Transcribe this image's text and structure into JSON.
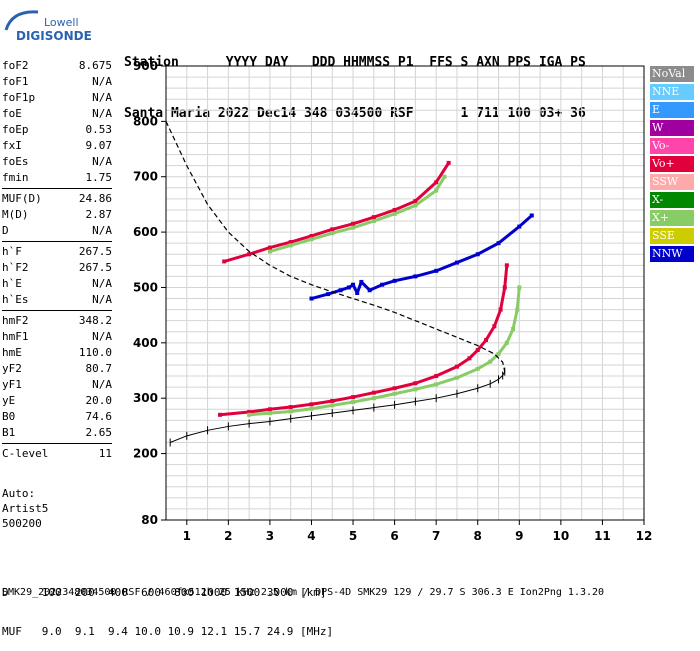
{
  "logo": {
    "line1": "Lowell",
    "line2": "DIGISONDE"
  },
  "header": {
    "line1": "Station      YYYY DAY   DDD HHMMSS P1  FFS S AXN PPS IGA PS",
    "line2": "Santa Maria 2022 Dec14 348 034500 RSF      1 711 100 03+ 36"
  },
  "params": [
    {
      "group": [
        {
          "label": "foF2",
          "value": "8.675"
        },
        {
          "label": "foF1",
          "value": "N/A"
        },
        {
          "label": "foF1p",
          "value": "N/A"
        },
        {
          "label": "foE",
          "value": "N/A"
        },
        {
          "label": "foEp",
          "value": "0.53"
        },
        {
          "label": "fxI",
          "value": "9.07"
        },
        {
          "label": "foEs",
          "value": "N/A"
        },
        {
          "label": "fmin",
          "value": "1.75"
        }
      ]
    },
    {
      "group": [
        {
          "label": "MUF(D)",
          "value": "24.86"
        },
        {
          "label": "M(D)",
          "value": "2.87"
        },
        {
          "label": "D",
          "value": "N/A"
        }
      ]
    },
    {
      "group": [
        {
          "label": "h`F",
          "value": "267.5"
        },
        {
          "label": "h`F2",
          "value": "267.5"
        },
        {
          "label": "h`E",
          "value": "N/A"
        },
        {
          "label": "h`Es",
          "value": "N/A"
        }
      ]
    },
    {
      "group": [
        {
          "label": "hmF2",
          "value": "348.2"
        },
        {
          "label": "hmF1",
          "value": "N/A"
        },
        {
          "label": "hmE",
          "value": "110.0"
        },
        {
          "label": "yF2",
          "value": "80.7"
        },
        {
          "label": "yF1",
          "value": "N/A"
        },
        {
          "label": "yE",
          "value": "20.0"
        },
        {
          "label": "B0",
          "value": "74.6"
        },
        {
          "label": "B1",
          "value": "2.65"
        }
      ]
    },
    {
      "group": [
        {
          "label": "C-level",
          "value": "11"
        }
      ]
    }
  ],
  "auto": {
    "line1": "Auto:",
    "line2": "Artist5",
    "line3": "500200"
  },
  "legend": [
    {
      "label": "NoVal",
      "color": "#8c8c8c"
    },
    {
      "label": "NNE",
      "color": "#66ccff"
    },
    {
      "label": "E",
      "color": "#3399ff"
    },
    {
      "label": "W",
      "color": "#a000a0"
    },
    {
      "label": "Vo-",
      "color": "#ff44aa"
    },
    {
      "label": "Vo+",
      "color": "#e0003c"
    },
    {
      "label": "SSW",
      "color": "#ffaaaa"
    },
    {
      "label": "X-",
      "color": "#008800"
    },
    {
      "label": "X+",
      "color": "#88cc66"
    },
    {
      "label": "SSE",
      "color": "#cccc00"
    },
    {
      "label": "NNW",
      "color": "#0000cc"
    }
  ],
  "bottom": {
    "d_row": "D     100  200  400  600  800 1000 1500 3000 [km]",
    "muf_row": "MUF   9.0  9.1  9.4 10.0 10.9 12.1 15.7 24.9 [MHz]"
  },
  "footer": "SMK29_2022348034500.RSF / 460fx512h 25 kHz 2.5 km / DPS-4D SMK29 129 / 29.7 S 306.3 E Ion2Png 1.3.20",
  "chart_data": {
    "type": "scatter",
    "xlim": [
      0.5,
      12.0
    ],
    "ylim": [
      80,
      900
    ],
    "x_ticks": [
      1,
      2,
      3,
      4,
      5,
      6,
      7,
      8,
      9,
      10,
      11,
      12
    ],
    "y_ticks": [
      80,
      200,
      300,
      400,
      500,
      600,
      700,
      800,
      900
    ],
    "grid": true,
    "legend_position": "right",
    "series": [
      {
        "color": "#e0003c",
        "x": [
          1.8,
          2.5,
          3.0,
          3.5,
          4.0,
          4.5,
          5.0,
          5.5,
          6.0,
          6.5,
          7.0,
          7.5,
          7.8,
          8.0,
          8.2,
          8.4,
          8.55,
          8.65,
          8.7
        ],
        "y": [
          270,
          275,
          280,
          284,
          289,
          295,
          302,
          310,
          318,
          327,
          340,
          357,
          372,
          387,
          405,
          430,
          460,
          500,
          540
        ]
      },
      {
        "color": "#88cc66",
        "x": [
          2.5,
          3.0,
          3.5,
          4.0,
          4.5,
          5.0,
          5.5,
          6.0,
          6.5,
          7.0,
          7.5,
          8.0,
          8.3,
          8.5,
          8.7,
          8.85,
          8.95,
          9.0
        ],
        "y": [
          270,
          273,
          276,
          281,
          287,
          293,
          300,
          308,
          316,
          325,
          337,
          353,
          366,
          380,
          400,
          425,
          460,
          500
        ]
      },
      {
        "color": "#e0003c",
        "x": [
          1.9,
          2.5,
          3.0,
          3.5,
          4.0,
          4.5,
          5.0,
          5.5,
          6.0,
          6.5,
          7.0,
          7.3
        ],
        "y": [
          547,
          560,
          572,
          582,
          593,
          605,
          615,
          627,
          640,
          656,
          690,
          725
        ]
      },
      {
        "color": "#88cc66",
        "x": [
          3.0,
          3.5,
          4.0,
          4.5,
          5.0,
          5.5,
          6.0,
          6.5,
          7.0,
          7.2
        ],
        "y": [
          565,
          576,
          587,
          598,
          608,
          620,
          633,
          648,
          675,
          700
        ]
      },
      {
        "color": "#0000cc",
        "x": [
          4.0,
          4.4,
          4.7,
          4.9,
          5.0,
          5.1,
          5.2,
          5.4,
          5.7,
          6.0,
          6.5,
          7.0,
          7.5,
          8.0,
          8.5,
          9.0,
          9.3
        ],
        "y": [
          480,
          488,
          495,
          500,
          505,
          490,
          510,
          495,
          505,
          512,
          520,
          530,
          545,
          560,
          580,
          610,
          630
        ]
      },
      {
        "color": "#000000",
        "x": [
          0.6,
          1.0,
          1.5,
          2.0,
          2.5,
          3.0,
          3.5,
          4.0,
          4.5,
          5.0,
          5.5,
          6.0,
          6.5,
          7.0,
          7.5,
          8.0,
          8.3,
          8.5,
          8.6,
          8.65
        ],
        "y": [
          220,
          232,
          242,
          249,
          254,
          258,
          263,
          268,
          273,
          278,
          283,
          288,
          294,
          300,
          308,
          318,
          326,
          334,
          341,
          348
        ]
      }
    ],
    "profile": {
      "x": [
        0.5,
        1.0,
        1.5,
        2.0,
        2.5,
        3.0,
        3.5,
        4.0,
        4.5,
        5.0,
        5.5,
        6.0,
        6.5,
        7.0,
        7.5,
        8.0,
        8.4,
        8.6,
        8.65
      ],
      "y": [
        800,
        720,
        650,
        600,
        565,
        540,
        520,
        505,
        492,
        480,
        468,
        455,
        440,
        425,
        410,
        395,
        380,
        365,
        348
      ]
    }
  }
}
